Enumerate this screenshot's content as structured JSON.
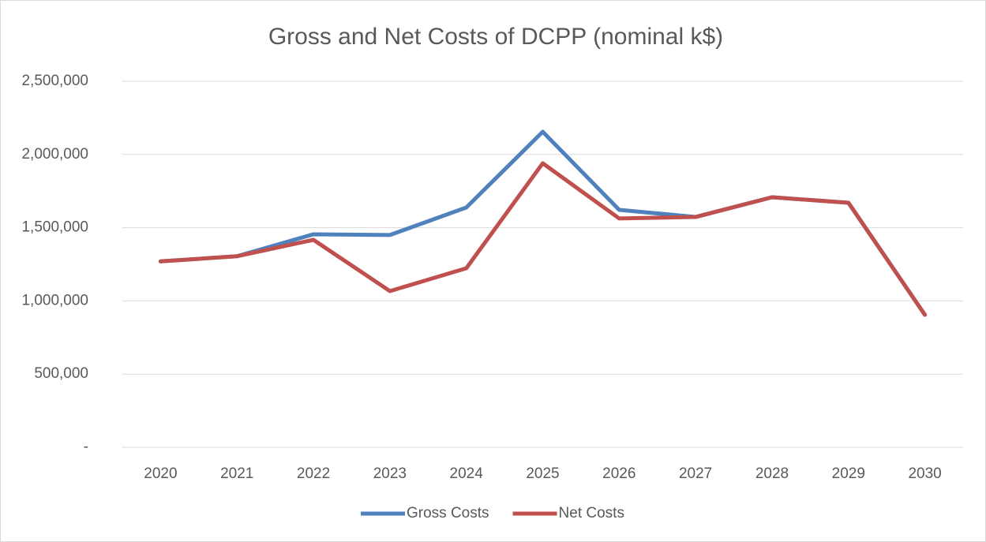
{
  "chart_data": {
    "type": "line",
    "title": "Gross and Net Costs of DCPP (nominal k$)",
    "categories": [
      "2020",
      "2021",
      "2022",
      "2023",
      "2024",
      "2025",
      "2026",
      "2027",
      "2028",
      "2029",
      "2030"
    ],
    "series": [
      {
        "name": "Gross Costs",
        "color": "#4f81bd",
        "values": [
          1270000,
          1305000,
          1455000,
          1450000,
          1638000,
          2155000,
          1622000,
          1573000,
          1708000,
          1670000,
          905000
        ]
      },
      {
        "name": "Net Costs",
        "color": "#c0504d",
        "values": [
          1270000,
          1305000,
          1417000,
          1067000,
          1223000,
          1940000,
          1563000,
          1573000,
          1708000,
          1670000,
          905000
        ]
      }
    ],
    "ylim": [
      0,
      2500000
    ],
    "yticks": [
      {
        "value": 0,
        "label": "-"
      },
      {
        "value": 500000,
        "label": "500,000"
      },
      {
        "value": 1000000,
        "label": "1,000,000"
      },
      {
        "value": 1500000,
        "label": "1,500,000"
      },
      {
        "value": 2000000,
        "label": "2,000,000"
      },
      {
        "value": 2500000,
        "label": "2,500,000"
      }
    ],
    "grid": true,
    "legend": "bottom"
  }
}
